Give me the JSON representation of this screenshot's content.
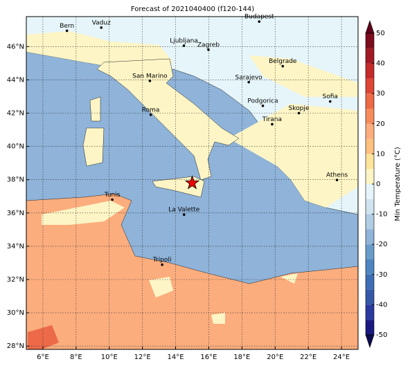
{
  "title": "Forecast of 2021040400 (f120-144)",
  "map": {
    "xlim": [
      5,
      25
    ],
    "ylim": [
      27.8,
      47.8
    ],
    "xticks": [
      {
        "value": 6,
        "label": "6°E"
      },
      {
        "value": 8,
        "label": "8°E"
      },
      {
        "value": 10,
        "label": "10°E"
      },
      {
        "value": 12,
        "label": "12°E"
      },
      {
        "value": 14,
        "label": "14°E"
      },
      {
        "value": 16,
        "label": "16°E"
      },
      {
        "value": 18,
        "label": "18°E"
      },
      {
        "value": 20,
        "label": "20°E"
      },
      {
        "value": 22,
        "label": "22°E"
      },
      {
        "value": 24,
        "label": "24°E"
      }
    ],
    "yticks": [
      {
        "value": 28,
        "label": "28°N"
      },
      {
        "value": 30,
        "label": "30°N"
      },
      {
        "value": 32,
        "label": "32°N"
      },
      {
        "value": 34,
        "label": "34°N"
      },
      {
        "value": 36,
        "label": "36°N"
      },
      {
        "value": 38,
        "label": "38°N"
      },
      {
        "value": 40,
        "label": "40°N"
      },
      {
        "value": 42,
        "label": "42°N"
      },
      {
        "value": 44,
        "label": "44°N"
      },
      {
        "value": 46,
        "label": "46°N"
      }
    ],
    "cities": [
      {
        "name": "Bern",
        "lon": 7.45,
        "lat": 46.95
      },
      {
        "name": "Vaduz",
        "lon": 9.52,
        "lat": 47.14
      },
      {
        "name": "Budapest",
        "lon": 19.04,
        "lat": 47.5
      },
      {
        "name": "Ljubljana",
        "lon": 14.5,
        "lat": 46.05
      },
      {
        "name": "Zagreb",
        "lon": 15.98,
        "lat": 45.81
      },
      {
        "name": "Belgrade",
        "lon": 20.46,
        "lat": 44.82
      },
      {
        "name": "San Marino",
        "lon": 12.45,
        "lat": 43.94
      },
      {
        "name": "Sarajevo",
        "lon": 18.41,
        "lat": 43.86
      },
      {
        "name": "Sofia",
        "lon": 23.32,
        "lat": 42.7
      },
      {
        "name": "Podgorica",
        "lon": 19.26,
        "lat": 42.44
      },
      {
        "name": "Skopje",
        "lon": 21.43,
        "lat": 42.0
      },
      {
        "name": "Roma",
        "lon": 12.5,
        "lat": 41.9
      },
      {
        "name": "Tirana",
        "lon": 19.82,
        "lat": 41.33
      },
      {
        "name": "Athens",
        "lon": 23.73,
        "lat": 37.98
      },
      {
        "name": "Tunis",
        "lon": 10.18,
        "lat": 36.8
      },
      {
        "name": "La Valette",
        "lon": 14.51,
        "lat": 35.9
      },
      {
        "name": "Tripoli",
        "lon": 13.19,
        "lat": 32.89
      }
    ],
    "star": {
      "lon": 15.0,
      "lat": 37.8
    }
  },
  "colorbar": {
    "label": "Min Temperature (°C)",
    "bounds": [
      -50,
      -45,
      -40,
      -35,
      -30,
      -25,
      -20,
      -15,
      -10,
      -5,
      0,
      5,
      10,
      15,
      20,
      25,
      30,
      35,
      40,
      45,
      50
    ],
    "colors": [
      "#1a1a80",
      "#2b3a9e",
      "#3558a8",
      "#3f6db5",
      "#4d85bf",
      "#6a9cc9",
      "#8fb3d9",
      "#b0cde4",
      "#cfe4ef",
      "#e6f5f9",
      "#fdf5c5",
      "#fee39a",
      "#fdc080",
      "#fcad7d",
      "#f68b5c",
      "#ec6a48",
      "#dd4535",
      "#c42b2a",
      "#a11a25",
      "#7d0c1c"
    ],
    "extend_colors": [
      "#0c0c50",
      "#60001a"
    ],
    "ticks": [
      -50,
      -40,
      -30,
      -20,
      -10,
      0,
      10,
      20,
      30,
      40,
      50
    ]
  }
}
